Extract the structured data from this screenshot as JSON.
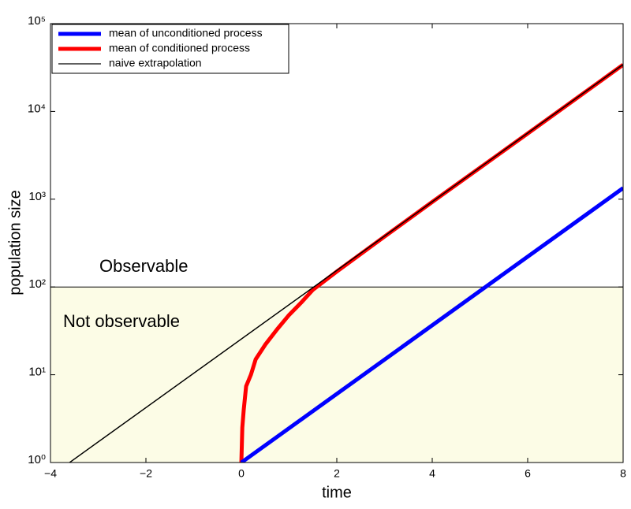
{
  "chart_data": {
    "type": "line",
    "xlabel": "time",
    "ylabel": "population size",
    "xlim": [
      -4,
      8
    ],
    "xticks": [
      {
        "value": -4,
        "label": "−4"
      },
      {
        "value": -2,
        "label": "−2"
      },
      0,
      2,
      4,
      6,
      8
    ],
    "ylim": [
      1,
      100000
    ],
    "log_y": true,
    "yticks": [
      {
        "value": 1,
        "label": "10⁰"
      },
      {
        "value": 10,
        "label": "10¹"
      },
      {
        "value": 100,
        "label": "10²"
      },
      {
        "value": 1000,
        "label": "10³"
      },
      {
        "value": 10000,
        "label": "10⁴"
      },
      {
        "value": 100000,
        "label": "10⁵"
      }
    ],
    "legend": "upper left",
    "threshold": 100,
    "shade_color": "#fcfce6",
    "annotations": [
      "Observable",
      "Not observable"
    ],
    "series": [
      {
        "name": "mean of unconditioned process",
        "color": "#0000ff",
        "width": 5,
        "x": [
          0,
          8
        ],
        "values": [
          1,
          1339
        ]
      },
      {
        "name": "mean of conditioned process",
        "color": "#ff0000",
        "width": 5,
        "x": [
          0,
          0.02,
          0.05,
          0.1,
          0.2,
          0.3,
          0.5,
          0.75,
          1,
          1.25,
          1.5,
          2,
          3,
          4,
          5,
          6,
          7,
          8
        ],
        "values": [
          1,
          2.5,
          4,
          7.4,
          10,
          15,
          22,
          33,
          48,
          66,
          93,
          150,
          375,
          930,
          2280,
          5600,
          13800,
          34000
        ]
      },
      {
        "name": "naive extrapolation",
        "color": "#000000",
        "width": 1.3,
        "x": [
          -3.6,
          8
        ],
        "values": [
          1,
          34200
        ]
      }
    ]
  }
}
